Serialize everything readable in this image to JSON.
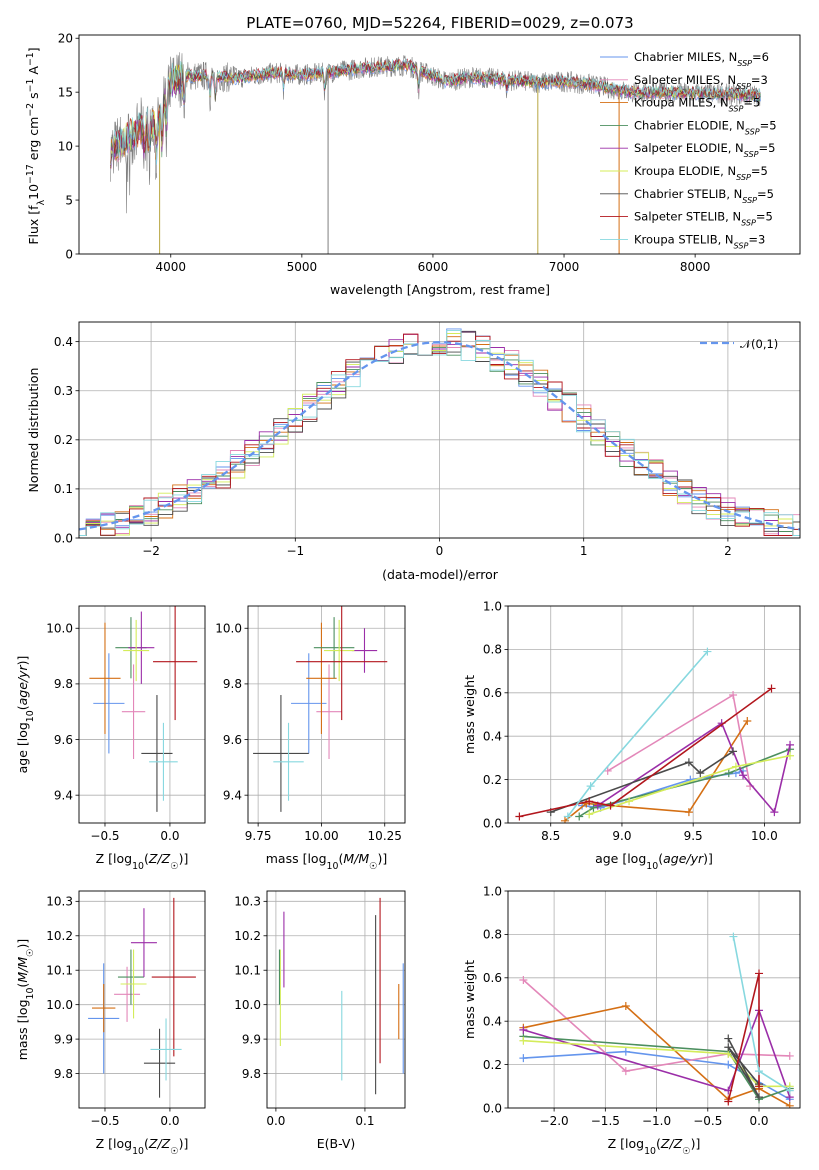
{
  "chart_data": [
    {
      "type": "line",
      "title": "PLATE=0760, MJD=52264, FIBERID=0029, z=0.073",
      "xlabel": "wavelength [Angstrom, rest frame]",
      "ylabel": "Flux [f_λ 10^-17 erg cm^-2 s^-1 A^-1]",
      "xlim": [
        3300,
        8800
      ],
      "ylim": [
        0,
        20.3
      ],
      "xticks": [
        4000,
        5000,
        6000,
        7000,
        8000
      ],
      "yticks": [
        0,
        5,
        10,
        15,
        20
      ],
      "legend_position": "upper right",
      "series": [
        {
          "name": "Chabrier MILES, N_SSP=6",
          "color": "#6495ed"
        },
        {
          "name": "Salpeter MILES, N_SSP=3",
          "color": "#e387b9"
        },
        {
          "name": "Kroupa MILES, N_SSP=5",
          "color": "#d46f14"
        },
        {
          "name": "Chabrier ELODIE, N_SSP=5",
          "color": "#4c8f5f"
        },
        {
          "name": "Salpeter ELODIE, N_SSP=5",
          "color": "#9b2ea8"
        },
        {
          "name": "Kroupa ELODIE, N_SSP=5",
          "color": "#d4ec5a"
        },
        {
          "name": "Chabrier STELIB, N_SSP=5",
          "color": "#4a4a4a"
        },
        {
          "name": "Salpeter STELIB, N_SSP=5",
          "color": "#b2161d"
        },
        {
          "name": "Kroupa STELIB, N_SSP=3",
          "color": "#87d8df"
        }
      ],
      "continuum": [
        [
          3540,
          9.5
        ],
        [
          3600,
          10.2
        ],
        [
          3700,
          11.0
        ],
        [
          3800,
          12.0
        ],
        [
          3900,
          12.0
        ],
        [
          4000,
          16.0
        ],
        [
          4100,
          16.5
        ],
        [
          4300,
          16.5
        ],
        [
          4500,
          16.3
        ],
        [
          4800,
          16.8
        ],
        [
          5000,
          16.6
        ],
        [
          5200,
          16.8
        ],
        [
          5500,
          17.3
        ],
        [
          5800,
          17.5
        ],
        [
          6100,
          16.0
        ],
        [
          6300,
          16.4
        ],
        [
          6500,
          16.2
        ],
        [
          6800,
          15.9
        ],
        [
          7000,
          16.0
        ],
        [
          7200,
          15.7
        ],
        [
          7500,
          15.0
        ],
        [
          8000,
          14.9
        ],
        [
          8500,
          14.7
        ]
      ]
    },
    {
      "type": "histogram",
      "xlabel": "(data-model)/error",
      "ylabel": "Normed distribution",
      "xlim": [
        -2.5,
        2.5
      ],
      "ylim": [
        0,
        0.44
      ],
      "xticks": [
        -2,
        -1,
        0,
        1,
        2
      ],
      "yticks": [
        0.0,
        0.1,
        0.2,
        0.3,
        0.4
      ],
      "reference_curve": {
        "name": "𝒩(0,1)",
        "color": "#6495ed"
      },
      "bin_width": 0.1
    },
    {
      "type": "scatter",
      "xlabel": "Z [log10(Z/Z⊙)]",
      "ylabel": "age [log10(age/yr)]",
      "xlim": [
        -0.7,
        0.27
      ],
      "ylim": [
        9.3,
        10.08
      ],
      "xticks": [
        -0.5,
        0.0
      ],
      "yticks": [
        9.4,
        9.6,
        9.8,
        10.0
      ],
      "points": [
        {
          "x": -0.47,
          "y": 9.73,
          "xerr": 0.12,
          "yerr": 0.18,
          "color": "#6495ed"
        },
        {
          "x": -0.28,
          "y": 9.7,
          "xerr": 0.09,
          "yerr": 0.17,
          "color": "#e387b9"
        },
        {
          "x": -0.5,
          "y": 9.82,
          "xerr": 0.12,
          "yerr": 0.2,
          "color": "#d46f14"
        },
        {
          "x": -0.3,
          "y": 9.93,
          "xerr": 0.12,
          "yerr": 0.11,
          "color": "#4c8f5f"
        },
        {
          "x": -0.22,
          "y": 9.93,
          "xerr": 0.1,
          "yerr": 0.13,
          "color": "#9b2ea8"
        },
        {
          "x": -0.26,
          "y": 9.92,
          "xerr": 0.1,
          "yerr": 0.11,
          "color": "#d4ec5a"
        },
        {
          "x": -0.1,
          "y": 9.55,
          "xerr": 0.12,
          "yerr": 0.21,
          "color": "#4a4a4a"
        },
        {
          "x": 0.04,
          "y": 9.88,
          "xerr": 0.17,
          "yerr": 0.21,
          "color": "#b2161d"
        },
        {
          "x": -0.05,
          "y": 9.52,
          "xerr": 0.11,
          "yerr": 0.14,
          "color": "#87d8df"
        }
      ]
    },
    {
      "type": "scatter",
      "xlabel": "mass [log10(M/M⊙)]",
      "ylabel": "",
      "xlim": [
        9.71,
        10.33
      ],
      "ylim": [
        9.3,
        10.08
      ],
      "xticks": [
        9.75,
        10.0,
        10.25
      ],
      "yticks": [
        9.4,
        9.6,
        9.8,
        10.0
      ],
      "points": [
        {
          "x": 9.95,
          "y": 9.73,
          "xerr": 0.07,
          "yerr": 0.18,
          "color": "#6495ed"
        },
        {
          "x": 10.03,
          "y": 9.7,
          "xerr": 0.05,
          "yerr": 0.17,
          "color": "#e387b9"
        },
        {
          "x": 10.0,
          "y": 9.82,
          "xerr": 0.06,
          "yerr": 0.2,
          "color": "#d46f14"
        },
        {
          "x": 10.05,
          "y": 9.93,
          "xerr": 0.08,
          "yerr": 0.11,
          "color": "#4c8f5f"
        },
        {
          "x": 10.17,
          "y": 9.92,
          "xerr": 0.05,
          "yerr": 0.08,
          "color": "#9b2ea8"
        },
        {
          "x": 10.07,
          "y": 9.92,
          "xerr": 0.06,
          "yerr": 0.11,
          "color": "#d4ec5a"
        },
        {
          "x": 9.84,
          "y": 9.55,
          "xerr": 0.11,
          "yerr": 0.21,
          "color": "#4a4a4a"
        },
        {
          "x": 10.08,
          "y": 9.88,
          "xerr": 0.18,
          "yerr": 0.21,
          "color": "#b2161d"
        },
        {
          "x": 9.87,
          "y": 9.52,
          "xerr": 0.06,
          "yerr": 0.14,
          "color": "#87d8df"
        }
      ]
    },
    {
      "type": "line",
      "xlabel": "age [log10(age/yr)]",
      "ylabel": "mass weight",
      "xlim": [
        8.2,
        10.25
      ],
      "ylim": [
        0,
        1
      ],
      "xticks": [
        8.5,
        9.0,
        9.5,
        10.0
      ],
      "yticks": [
        0.0,
        0.2,
        0.4,
        0.6,
        0.8,
        1.0
      ],
      "series": [
        {
          "color": "#6495ed",
          "x": [
            8.72,
            8.85,
            9.48,
            9.8,
            9.85
          ],
          "y": [
            0.08,
            0.07,
            0.2,
            0.23,
            0.24
          ]
        },
        {
          "color": "#e387b9",
          "x": [
            8.9,
            9.78,
            9.9
          ],
          "y": [
            0.24,
            0.59,
            0.17
          ]
        },
        {
          "color": "#d46f14",
          "x": [
            8.6,
            8.75,
            9.47,
            9.88
          ],
          "y": [
            0.01,
            0.09,
            0.05,
            0.47
          ]
        },
        {
          "color": "#4c8f5f",
          "x": [
            8.7,
            8.8,
            9.75,
            10.18
          ],
          "y": [
            0.03,
            0.07,
            0.23,
            0.34
          ]
        },
        {
          "color": "#9b2ea8",
          "x": [
            8.83,
            9.7,
            9.85,
            10.07,
            10.18
          ],
          "y": [
            0.08,
            0.46,
            0.22,
            0.05,
            0.36
          ]
        },
        {
          "color": "#d4ec5a",
          "x": [
            8.77,
            9.05,
            9.8,
            10.18
          ],
          "y": [
            0.04,
            0.1,
            0.26,
            0.31
          ]
        },
        {
          "color": "#4a4a4a",
          "x": [
            8.5,
            9.47,
            9.55,
            9.78
          ],
          "y": [
            0.05,
            0.28,
            0.23,
            0.33
          ]
        },
        {
          "color": "#b2161d",
          "x": [
            8.28,
            8.77,
            8.92,
            10.05
          ],
          "y": [
            0.03,
            0.1,
            0.08,
            0.62
          ]
        },
        {
          "color": "#87d8df",
          "x": [
            8.62,
            8.78,
            9.6
          ],
          "y": [
            0.03,
            0.17,
            0.79
          ]
        }
      ]
    },
    {
      "type": "scatter",
      "xlabel": "Z [log10(Z/Z⊙)]",
      "ylabel": "mass [log10(M/M⊙)]",
      "xlim": [
        -0.7,
        0.27
      ],
      "ylim": [
        9.7,
        10.33
      ],
      "xticks": [
        -0.5,
        0.0
      ],
      "yticks": [
        9.8,
        9.9,
        10.0,
        10.1,
        10.2,
        10.3
      ],
      "points": [
        {
          "x": -0.51,
          "y": 9.96,
          "xerr": 0.12,
          "yerr": 0.16,
          "color": "#6495ed"
        },
        {
          "x": -0.33,
          "y": 10.03,
          "xerr": 0.1,
          "yerr": 0.08,
          "color": "#e387b9"
        },
        {
          "x": -0.51,
          "y": 9.99,
          "xerr": 0.09,
          "yerr": 0.07,
          "color": "#d46f14"
        },
        {
          "x": -0.3,
          "y": 10.08,
          "xerr": 0.1,
          "yerr": 0.08,
          "color": "#4c8f5f"
        },
        {
          "x": -0.2,
          "y": 10.18,
          "xerr": 0.1,
          "yerr": 0.1,
          "color": "#9b2ea8"
        },
        {
          "x": -0.28,
          "y": 10.06,
          "xerr": 0.1,
          "yerr": 0.1,
          "color": "#d4ec5a"
        },
        {
          "x": -0.08,
          "y": 9.83,
          "xerr": 0.12,
          "yerr": 0.1,
          "color": "#4a4a4a"
        },
        {
          "x": 0.03,
          "y": 10.08,
          "xerr": 0.17,
          "yerr": 0.23,
          "color": "#b2161d"
        },
        {
          "x": -0.03,
          "y": 9.87,
          "xerr": 0.12,
          "yerr": 0.09,
          "color": "#87d8df"
        }
      ]
    },
    {
      "type": "scatter",
      "xlabel": "E(B-V)",
      "ylabel": "",
      "xlim": [
        -0.01,
        0.145
      ],
      "ylim": [
        9.7,
        10.33
      ],
      "xticks": [
        0.0,
        0.1
      ],
      "yticks": [
        9.8,
        9.9,
        10.0,
        10.1,
        10.2,
        10.3
      ],
      "points": [
        {
          "x": 0.143,
          "y": 9.96,
          "yerr": 0.16,
          "color": "#6495ed"
        },
        {
          "x": 0.009,
          "y": 10.16,
          "yerr": 0.11,
          "color": "#9b2ea8"
        },
        {
          "x": 0.005,
          "y": 10.02,
          "yerr": 0.14,
          "color": "#d4ec5a"
        },
        {
          "x": 0.004,
          "y": 10.08,
          "yerr": 0.08,
          "color": "#4c8f5f"
        },
        {
          "x": 0.074,
          "y": 9.91,
          "yerr": 0.13,
          "color": "#87d8df"
        },
        {
          "x": 0.112,
          "y": 10.0,
          "yerr": 0.26,
          "color": "#4a4a4a"
        },
        {
          "x": 0.117,
          "y": 10.07,
          "yerr": 0.24,
          "color": "#b2161d"
        },
        {
          "x": 0.138,
          "y": 9.98,
          "yerr": 0.08,
          "color": "#d46f14"
        }
      ]
    },
    {
      "type": "line",
      "xlabel": "Z [log10(Z/Z⊙)]",
      "ylabel": "mass weight",
      "xlim": [
        -2.45,
        0.4
      ],
      "ylim": [
        0,
        1
      ],
      "xticks": [
        -2.0,
        -1.5,
        -1.0,
        -0.5,
        0.0
      ],
      "yticks": [
        0.0,
        0.2,
        0.4,
        0.6,
        0.8,
        1.0
      ],
      "series": [
        {
          "color": "#6495ed",
          "x": [
            -2.3,
            -1.3,
            -0.3,
            0.3
          ],
          "y": [
            0.23,
            0.26,
            0.2,
            0.04
          ]
        },
        {
          "color": "#e387b9",
          "x": [
            -2.3,
            -1.3,
            -0.3,
            0.3
          ],
          "y": [
            0.59,
            0.17,
            0.25,
            0.24
          ]
        },
        {
          "color": "#d46f14",
          "x": [
            -2.3,
            -1.3,
            -0.3,
            0.0,
            0.3
          ],
          "y": [
            0.37,
            0.47,
            0.04,
            0.09,
            0.01
          ]
        },
        {
          "color": "#4c8f5f",
          "x": [
            -2.3,
            -0.3,
            0.0,
            0.3
          ],
          "y": [
            0.33,
            0.26,
            0.04,
            0.09
          ]
        },
        {
          "color": "#9b2ea8",
          "x": [
            -2.3,
            -0.3,
            0.0,
            0.3
          ],
          "y": [
            0.36,
            0.08,
            0.45,
            0.05
          ]
        },
        {
          "color": "#d4ec5a",
          "x": [
            -2.3,
            -0.3,
            0.0,
            0.3
          ],
          "y": [
            0.31,
            0.25,
            0.1,
            0.1
          ]
        },
        {
          "color": "#4a4a4a",
          "x": [
            -0.3,
            0.0,
            -0.3,
            0.0
          ],
          "y": [
            0.32,
            0.05,
            0.28,
            0.11
          ]
        },
        {
          "color": "#b2161d",
          "x": [
            -0.3,
            0.0,
            0.0
          ],
          "y": [
            0.03,
            0.62,
            0.1
          ]
        },
        {
          "color": "#87d8df",
          "x": [
            -0.25,
            0.0,
            0.3
          ],
          "y": [
            0.79,
            0.17,
            0.08
          ]
        }
      ]
    }
  ]
}
